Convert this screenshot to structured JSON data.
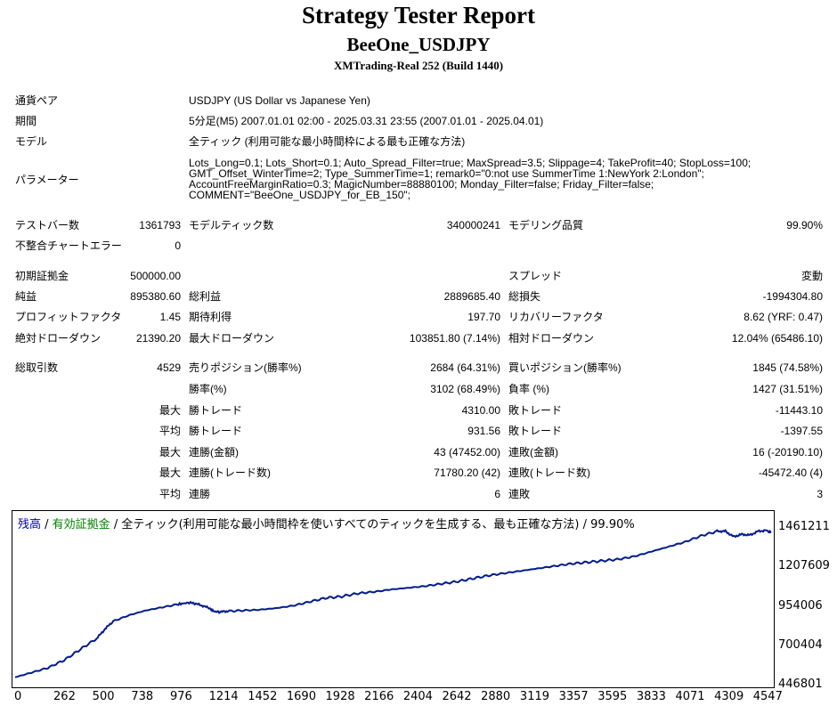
{
  "header": {
    "title": "Strategy Tester Report",
    "subtitle": "BeeOne_USDJPY",
    "server": "XMTrading-Real 252 (Build 1440)"
  },
  "info": {
    "symbol_label": "通貨ペア",
    "symbol_value": "USDJPY (US Dollar vs Japanese Yen)",
    "period_label": "期間",
    "period_value": "5分足(M5) 2007.01.01 02:00 - 2025.03.31 23:55 (2007.01.01 - 2025.04.01)",
    "model_label": "モデル",
    "model_value": "全ティック (利用可能な最小時間枠による最も正確な方法)",
    "params_label": "パラメーター",
    "params_value": "Lots_Long=0.1; Lots_Short=0.1; Auto_Spread_Filter=true; MaxSpread=3.5; Slippage=4; TakeProfit=40; StopLoss=100; GMT_Offset_WinterTime=2; Type_SummerTime=1; remark0=\"0:not use SummerTime 1:NewYork 2:London\"; AccountFreeMarginRatio=0.3; MagicNumber=88880100; Monday_Filter=false; Friday_Filter=false; COMMENT=\"BeeOne_USDJPY_for_EB_150\";"
  },
  "stats": {
    "bars_label": "テストバー数",
    "bars_value": "1361793",
    "ticks_label": "モデルティック数",
    "ticks_value": "340000241",
    "quality_label": "モデリング品質",
    "quality_value": "99.90%",
    "mismatch_label": "不整合チャートエラー",
    "mismatch_value": "0",
    "deposit_label": "初期証拠金",
    "deposit_value": "500000.00",
    "spread_label": "スプレッド",
    "spread_value": "変動",
    "net_label": "純益",
    "net_value": "895380.60",
    "gross_profit_label": "総利益",
    "gross_profit_value": "2889685.40",
    "gross_loss_label": "総損失",
    "gross_loss_value": "-1994304.80",
    "pf_label": "プロフィットファクタ",
    "pf_value": "1.45",
    "expected_label": "期待利得",
    "expected_value": "197.70",
    "recovery_label": "リカバリーファクタ",
    "recovery_value": "8.62 (YRF: 0.47)",
    "abs_dd_label": "絶対ドローダウン",
    "abs_dd_value": "21390.20",
    "max_dd_label": "最大ドローダウン",
    "max_dd_value": "103851.80 (7.14%)",
    "rel_dd_label": "相対ドローダウン",
    "rel_dd_value": "12.04% (65486.10)",
    "trades_label": "総取引数",
    "trades_value": "4529",
    "short_label": "売りポジション(勝率%)",
    "short_value": "2684 (64.31%)",
    "long_label": "買いポジション(勝率%)",
    "long_value": "1845 (74.58%)",
    "win_rate_label": "勝率(%)",
    "win_rate_value": "3102 (68.49%)",
    "loss_rate_label": "負率 (%)",
    "loss_rate_value": "1427 (31.51%)",
    "max_label": "最大",
    "avg_label": "平均",
    "largest_win_label": "勝トレード",
    "largest_win_value": "4310.00",
    "largest_loss_label": "敗トレード",
    "largest_loss_value": "-11443.10",
    "avg_win_label": "勝トレード",
    "avg_win_value": "931.56",
    "avg_loss_label": "敗トレード",
    "avg_loss_value": "-1397.55",
    "cons_wins_label": "連勝(金額)",
    "cons_wins_value": "43 (47452.00)",
    "cons_losses_label": "連敗(金額)",
    "cons_losses_value": "16 (-20190.10)",
    "cons_profit_label": "連勝(トレード数)",
    "cons_profit_value": "71780.20 (42)",
    "cons_loss_label": "連敗(トレード数)",
    "cons_loss_value": "-45472.40 (4)",
    "avg_cons_wins_label": "連勝",
    "avg_cons_wins_value": "6",
    "avg_cons_losses_label": "連敗",
    "avg_cons_losses_value": "3"
  },
  "chart_legend": {
    "balance": "残高",
    "sep1": " / ",
    "equity": "有効証拠金",
    "sep2": " / ",
    "rest": "全ティック(利用可能な最小時間枠を使いすべてのティックを生成する、最も正確な方法) / 99.90%",
    "balance_color": "#0000c0",
    "equity_color": "#008000"
  },
  "chart_data": {
    "type": "line",
    "title": "",
    "xlabel": "",
    "ylabel": "",
    "xlim": [
      0,
      4630
    ],
    "ylim": [
      446801,
      1461211
    ],
    "x_ticks": [
      "0",
      "262",
      "500",
      "738",
      "976",
      "1214",
      "1452",
      "1690",
      "1928",
      "2166",
      "2404",
      "2642",
      "2880",
      "3119",
      "3357",
      "3595",
      "3833",
      "4071",
      "4309",
      "4547"
    ],
    "y_ticks": [
      "1461211",
      "1207609",
      "954006",
      "700404",
      "446801"
    ],
    "line_color": "#001c8c",
    "series": [
      {
        "x": [
          0,
          100,
          200,
          300,
          400,
          500,
          550,
          600,
          700,
          800,
          900,
          1000,
          1060,
          1100,
          1150,
          1200,
          1214,
          1250,
          1300,
          1400,
          1500,
          1600,
          1700,
          1800,
          1900,
          2000,
          2100,
          2200,
          2300,
          2400,
          2500,
          2600,
          2700,
          2800,
          2900,
          3000,
          3100,
          3200,
          3300,
          3400,
          3500,
          3600,
          3700,
          3800,
          3900,
          4000,
          4100,
          4200,
          4300,
          4350,
          4400,
          4450,
          4500,
          4550,
          4600,
          4630
        ],
        "y": [
          500000,
          530000,
          560000,
          610000,
          680000,
          750000,
          810000,
          860000,
          900000,
          930000,
          950000,
          970000,
          980000,
          975000,
          960000,
          940000,
          925000,
          920000,
          925000,
          930000,
          935000,
          945000,
          960000,
          985000,
          1010000,
          1020000,
          1040000,
          1050000,
          1065000,
          1075000,
          1085000,
          1100000,
          1115000,
          1135000,
          1155000,
          1170000,
          1185000,
          1200000,
          1215000,
          1230000,
          1240000,
          1250000,
          1260000,
          1280000,
          1310000,
          1340000,
          1370000,
          1410000,
          1440000,
          1440000,
          1405000,
          1420000,
          1415000,
          1440000,
          1445000,
          1430000
        ]
      }
    ]
  }
}
